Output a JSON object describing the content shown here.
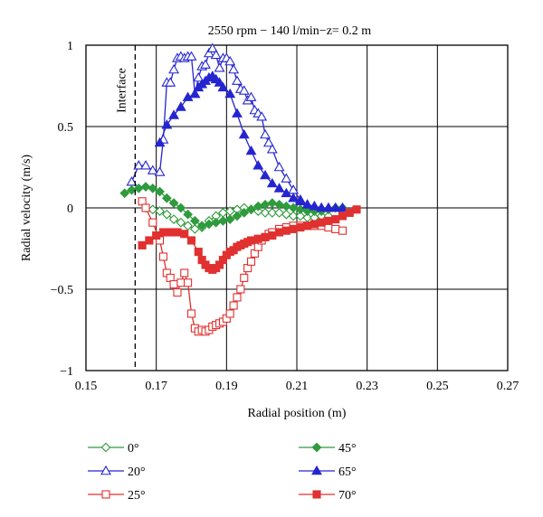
{
  "chart_data": {
    "type": "line",
    "title": "2550 rpm − 140 l/min−z= 0.2 m",
    "xlabel": "Radial position (m)",
    "ylabel": "Radial velocity (m/s)",
    "xlim": [
      0.15,
      0.27
    ],
    "ylim": [
      -1,
      1
    ],
    "xticks": [
      0.15,
      0.17,
      0.19,
      0.21,
      0.23,
      0.25,
      0.27
    ],
    "xtick_labels": [
      "0.15",
      "0.17",
      "0.19",
      "0.21",
      "0.23",
      "0.25",
      "0.27"
    ],
    "yticks": [
      -1,
      -0.5,
      0,
      0.5,
      1
    ],
    "ytick_labels": [
      "−1",
      "−0.5",
      "0",
      "0.5",
      "1"
    ],
    "grid": true,
    "annotation": {
      "text": "Interface",
      "x": 0.164
    },
    "legend_position": "bottom",
    "series": [
      {
        "name": "0°",
        "color": "#2e9b3c",
        "marker": "diamond-open",
        "x": [
          0.167,
          0.169,
          0.171,
          0.173,
          0.175,
          0.177,
          0.179,
          0.181,
          0.183,
          0.185,
          0.187,
          0.189,
          0.191,
          0.193,
          0.195,
          0.197,
          0.199,
          0.201,
          0.203,
          0.205,
          0.207,
          0.209,
          0.211,
          0.213,
          0.215,
          0.217,
          0.219
        ],
        "y": [
          0.0,
          -0.01,
          -0.02,
          -0.04,
          -0.07,
          -0.09,
          -0.11,
          -0.13,
          -0.12,
          -0.08,
          -0.05,
          -0.03,
          -0.02,
          -0.01,
          0.0,
          -0.01,
          -0.02,
          -0.03,
          -0.03,
          -0.03,
          -0.04,
          -0.05,
          -0.05,
          -0.06,
          -0.06,
          -0.05,
          -0.05
        ]
      },
      {
        "name": "20°",
        "color": "#2525d0",
        "marker": "triangle-open",
        "x": [
          0.163,
          0.165,
          0.167,
          0.169,
          0.171,
          0.172,
          0.173,
          0.174,
          0.175,
          0.176,
          0.177,
          0.178,
          0.179,
          0.18,
          0.181,
          0.182,
          0.183,
          0.184,
          0.185,
          0.186,
          0.187,
          0.188,
          0.189,
          0.19,
          0.191,
          0.192,
          0.193,
          0.194,
          0.195,
          0.196,
          0.197,
          0.198,
          0.199,
          0.2,
          0.201,
          0.202,
          0.203,
          0.205,
          0.207,
          0.209,
          0.211,
          0.213,
          0.215,
          0.217,
          0.219,
          0.221
        ],
        "y": [
          0.16,
          0.26,
          0.26,
          0.23,
          0.22,
          0.42,
          0.77,
          0.77,
          0.85,
          0.92,
          0.93,
          0.92,
          0.93,
          0.93,
          0.7,
          0.8,
          0.87,
          0.88,
          0.95,
          0.98,
          0.94,
          0.86,
          0.92,
          0.92,
          0.9,
          0.85,
          0.78,
          0.73,
          0.72,
          0.66,
          0.68,
          0.6,
          0.58,
          0.56,
          0.45,
          0.4,
          0.36,
          0.25,
          0.18,
          0.11,
          0.05,
          0.02,
          0.01,
          0.0,
          0.0,
          0.0
        ]
      },
      {
        "name": "25°",
        "color": "#e03030",
        "marker": "square-open",
        "x": [
          0.166,
          0.167,
          0.169,
          0.171,
          0.172,
          0.173,
          0.174,
          0.175,
          0.176,
          0.177,
          0.178,
          0.179,
          0.18,
          0.181,
          0.182,
          0.183,
          0.184,
          0.185,
          0.186,
          0.187,
          0.188,
          0.189,
          0.19,
          0.191,
          0.192,
          0.193,
          0.194,
          0.195,
          0.196,
          0.197,
          0.198,
          0.199,
          0.2,
          0.201,
          0.202,
          0.203,
          0.205,
          0.207,
          0.209,
          0.211,
          0.213,
          0.215,
          0.217,
          0.219,
          0.221,
          0.223
        ],
        "y": [
          0.04,
          0.0,
          -0.09,
          -0.2,
          -0.3,
          -0.4,
          -0.43,
          -0.47,
          -0.52,
          -0.46,
          -0.4,
          -0.46,
          -0.65,
          -0.74,
          -0.76,
          -0.75,
          -0.76,
          -0.75,
          -0.73,
          -0.72,
          -0.71,
          -0.7,
          -0.68,
          -0.65,
          -0.6,
          -0.55,
          -0.5,
          -0.43,
          -0.37,
          -0.33,
          -0.28,
          -0.24,
          -0.2,
          -0.18,
          -0.16,
          -0.15,
          -0.13,
          -0.12,
          -0.11,
          -0.11,
          -0.11,
          -0.11,
          -0.11,
          -0.12,
          -0.13,
          -0.14
        ]
      },
      {
        "name": "45°",
        "color": "#2e9b3c",
        "marker": "diamond-filled",
        "x": [
          0.161,
          0.163,
          0.165,
          0.167,
          0.169,
          0.171,
          0.173,
          0.175,
          0.177,
          0.179,
          0.181,
          0.183,
          0.185,
          0.187,
          0.189,
          0.191,
          0.193,
          0.195,
          0.197,
          0.199,
          0.201,
          0.203,
          0.205,
          0.207,
          0.209,
          0.211,
          0.213,
          0.215,
          0.217,
          0.219,
          0.221,
          0.223
        ],
        "y": [
          0.09,
          0.11,
          0.12,
          0.13,
          0.12,
          0.1,
          0.06,
          0.03,
          0.0,
          -0.04,
          -0.08,
          -0.11,
          -0.1,
          -0.09,
          -0.08,
          -0.07,
          -0.05,
          -0.03,
          -0.01,
          0.01,
          0.02,
          0.03,
          0.02,
          0.01,
          0.0,
          -0.01,
          -0.02,
          -0.02,
          -0.02,
          -0.01,
          0.0,
          0.0
        ]
      },
      {
        "name": "65°",
        "color": "#2525d0",
        "marker": "triangle-filled",
        "x": [
          0.171,
          0.173,
          0.175,
          0.177,
          0.179,
          0.181,
          0.182,
          0.183,
          0.184,
          0.185,
          0.186,
          0.187,
          0.188,
          0.189,
          0.191,
          0.193,
          0.195,
          0.197,
          0.199,
          0.201,
          0.203,
          0.205,
          0.207,
          0.209,
          0.211,
          0.213,
          0.215,
          0.217,
          0.219,
          0.221,
          0.223
        ],
        "y": [
          0.4,
          0.51,
          0.57,
          0.62,
          0.68,
          0.7,
          0.74,
          0.76,
          0.78,
          0.8,
          0.81,
          0.79,
          0.77,
          0.74,
          0.7,
          0.58,
          0.45,
          0.35,
          0.26,
          0.2,
          0.15,
          0.12,
          0.09,
          0.06,
          0.04,
          0.02,
          0.01,
          0.0,
          0.0,
          0.0,
          0.0
        ]
      },
      {
        "name": "70°",
        "color": "#e03030",
        "marker": "square-filled",
        "x": [
          0.166,
          0.168,
          0.17,
          0.172,
          0.174,
          0.176,
          0.178,
          0.18,
          0.182,
          0.183,
          0.184,
          0.185,
          0.186,
          0.187,
          0.188,
          0.189,
          0.19,
          0.191,
          0.192,
          0.193,
          0.194,
          0.195,
          0.196,
          0.197,
          0.199,
          0.201,
          0.203,
          0.205,
          0.207,
          0.209,
          0.211,
          0.213,
          0.215,
          0.217,
          0.219,
          0.221,
          0.223,
          0.225,
          0.227
        ],
        "y": [
          -0.23,
          -0.2,
          -0.17,
          -0.15,
          -0.15,
          -0.15,
          -0.16,
          -0.2,
          -0.27,
          -0.32,
          -0.35,
          -0.37,
          -0.38,
          -0.37,
          -0.35,
          -0.32,
          -0.29,
          -0.27,
          -0.26,
          -0.24,
          -0.23,
          -0.22,
          -0.21,
          -0.2,
          -0.19,
          -0.18,
          -0.17,
          -0.15,
          -0.14,
          -0.13,
          -0.12,
          -0.11,
          -0.1,
          -0.09,
          -0.08,
          -0.07,
          -0.05,
          -0.03,
          -0.01
        ]
      }
    ]
  }
}
